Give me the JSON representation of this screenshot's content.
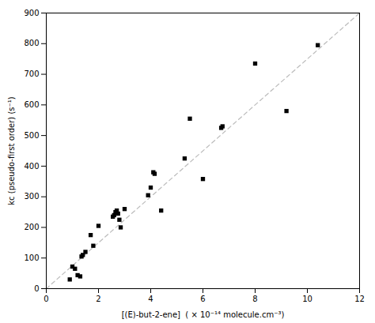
{
  "chart_data": {
    "type": "scatter",
    "x_label": "[(E)-but-2-ene]  ( × 10⁻¹⁴ molecule.cm⁻³)",
    "y_label": "kc (pseudo-first order) (s⁻¹)",
    "xlim": [
      0,
      12
    ],
    "ylim": [
      0,
      900
    ],
    "xticks": [
      0,
      2,
      4,
      6,
      8,
      10,
      12
    ],
    "yticks": [
      0,
      100,
      200,
      300,
      400,
      500,
      600,
      700,
      800,
      900
    ],
    "grid": false,
    "series": [
      {
        "type": "line",
        "x": [
          0.0,
          12.0
        ],
        "values": [
          0.0,
          900.0
        ],
        "color": "#bbbbbb",
        "line_style": "dashed"
      },
      {
        "type": "scatter",
        "x": [
          0.9,
          1.0,
          1.1,
          1.2,
          1.3,
          1.35,
          1.4,
          1.5,
          1.7,
          1.8,
          2.0,
          2.55,
          2.6,
          2.65,
          2.7,
          2.75,
          2.8,
          2.85,
          3.0,
          3.9,
          4.0,
          4.1,
          4.15,
          4.4,
          5.3,
          5.5,
          6.0,
          6.7,
          6.75,
          8.0,
          9.2,
          10.4
        ],
        "values": [
          30,
          72,
          65,
          44,
          40,
          105,
          110,
          120,
          175,
          140,
          205,
          235,
          240,
          250,
          255,
          245,
          225,
          200,
          260,
          305,
          330,
          380,
          375,
          255,
          425,
          555,
          358,
          525,
          530,
          735,
          580,
          795
        ],
        "color": "black",
        "marker": "square"
      }
    ]
  }
}
